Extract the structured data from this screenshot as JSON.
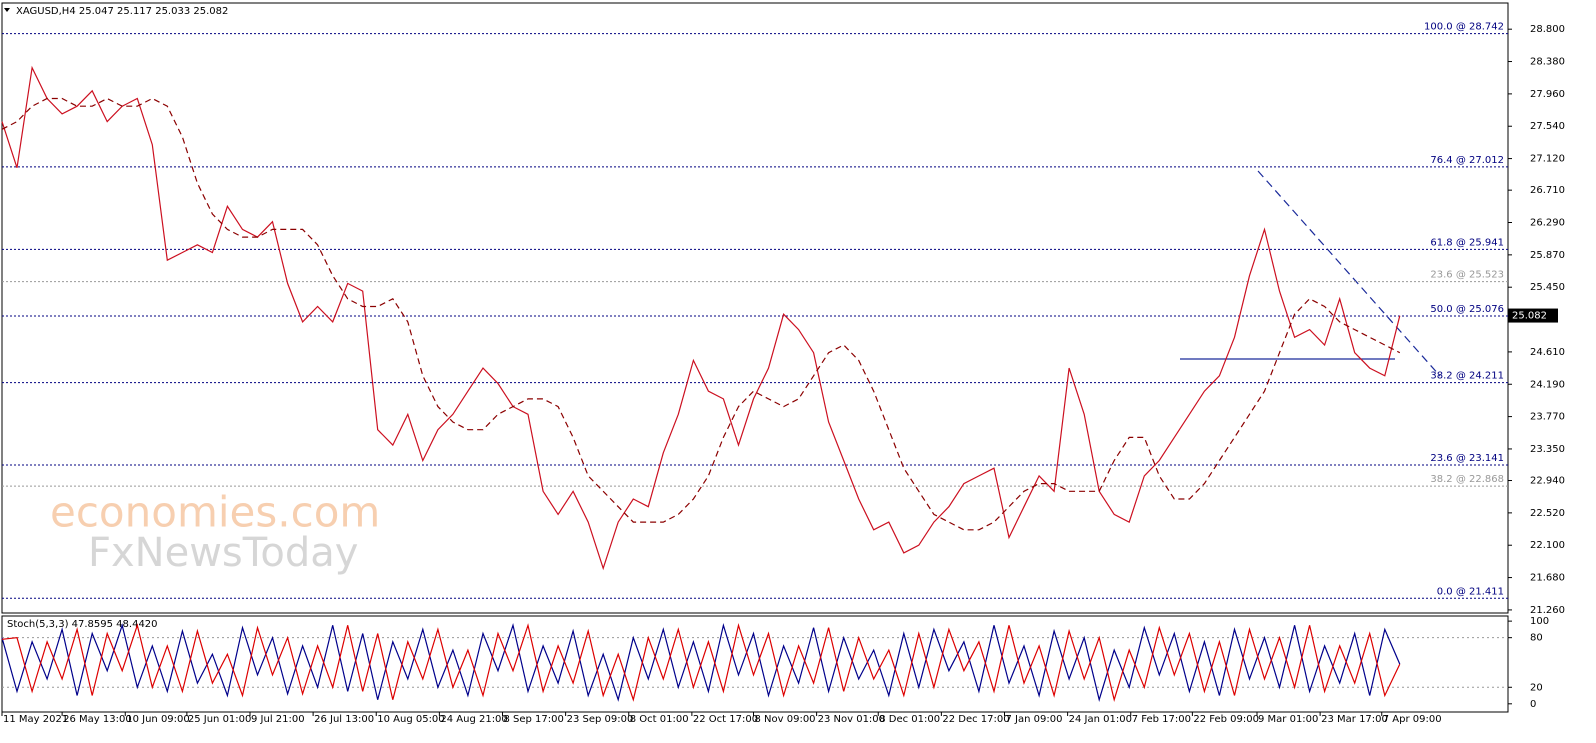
{
  "chart_data": [
    {
      "type": "line",
      "title": "XAGUSD,H4  25.047 25.117 25.033 25.082",
      "xlim": [
        0,
        100.2
      ],
      "xticks": [
        {
          "value": 0,
          "label": "11 May 2021"
        },
        {
          "value": 4,
          "label": "26 May 13:00"
        },
        {
          "value": 8.2,
          "label": "10 Jun 09:00"
        },
        {
          "value": 12.3,
          "label": "25 Jun 01:00"
        },
        {
          "value": 16.5,
          "label": "9 Jul 21:00"
        },
        {
          "value": 20.7,
          "label": "26 Jul 13:00"
        },
        {
          "value": 24.9,
          "label": "10 Aug 05:00"
        },
        {
          "value": 29.1,
          "label": "24 Aug 21:00"
        },
        {
          "value": 33.3,
          "label": "8 Sep 17:00"
        },
        {
          "value": 37.5,
          "label": "23 Sep 09:00"
        },
        {
          "value": 41.7,
          "label": "8 Oct 01:00"
        },
        {
          "value": 45.9,
          "label": "22 Oct 17:00"
        },
        {
          "value": 50,
          "label": "8 Nov 09:00"
        },
        {
          "value": 54.2,
          "label": "23 Nov 01:00"
        },
        {
          "value": 58.3,
          "label": "8 Dec 01:00"
        },
        {
          "value": 62.5,
          "label": "22 Dec 17:00"
        },
        {
          "value": 66.7,
          "label": "7 Jan 09:00"
        },
        {
          "value": 70.9,
          "label": "24 Jan 01:00"
        },
        {
          "value": 75.1,
          "label": "7 Feb 17:00"
        },
        {
          "value": 79.2,
          "label": "22 Feb 09:00"
        },
        {
          "value": 83.5,
          "label": "9 Mar 01:00"
        },
        {
          "value": 87.7,
          "label": "23 Mar 17:00"
        },
        {
          "value": 91.8,
          "label": "7 Apr 09:00"
        }
      ],
      "ylim": [
        21.22,
        29.14
      ],
      "yticks": [
        {
          "value": 28.8,
          "label": "28.800"
        },
        {
          "value": 28.38,
          "label": "28.380"
        },
        {
          "value": 27.96,
          "label": "27.960"
        },
        {
          "value": 27.54,
          "label": "27.540"
        },
        {
          "value": 27.12,
          "label": "27.120"
        },
        {
          "value": 26.71,
          "label": "26.710"
        },
        {
          "value": 26.29,
          "label": "26.290"
        },
        {
          "value": 25.87,
          "label": "25.870"
        },
        {
          "value": 25.45,
          "label": "25.450"
        },
        {
          "value": 24.61,
          "label": "24.610"
        },
        {
          "value": 24.19,
          "label": "24.190"
        },
        {
          "value": 23.77,
          "label": "23.770"
        },
        {
          "value": 23.35,
          "label": "23.350"
        },
        {
          "value": 22.94,
          "label": "22.940"
        },
        {
          "value": 22.52,
          "label": "22.520"
        },
        {
          "value": 22.1,
          "label": "22.100"
        },
        {
          "value": 21.68,
          "label": "21.680"
        },
        {
          "value": 21.26,
          "label": "21.260"
        }
      ],
      "levels": [
        {
          "value": 28.742,
          "label": "100.0 @ 28.742",
          "color": "#000080"
        },
        {
          "value": 27.012,
          "label": "76.4 @ 27.012",
          "color": "#000080"
        },
        {
          "value": 25.941,
          "label": "61.8 @ 25.941",
          "color": "#000080"
        },
        {
          "value": 25.523,
          "label": "23.6 @ 25.523",
          "color": "#999999"
        },
        {
          "value": 25.076,
          "label": "50.0 @ 25.076",
          "color": "#000080"
        },
        {
          "value": 24.211,
          "label": "38.2 @ 24.211",
          "color": "#000080"
        },
        {
          "value": 23.141,
          "label": "23.6 @ 23.141",
          "color": "#000080"
        },
        {
          "value": 22.868,
          "label": "38.2 @ 22.868",
          "color": "#999999"
        },
        {
          "value": 21.411,
          "label": "0.0 @ 21.411",
          "color": "#000080"
        }
      ],
      "last_price": 25.082,
      "series": [
        {
          "color": "#cc1020",
          "style": "solid",
          "values": [
            27.6,
            27.0,
            28.3,
            27.9,
            27.7,
            27.8,
            28.0,
            27.6,
            27.8,
            27.9,
            27.3,
            25.8,
            25.9,
            26.0,
            25.9,
            26.5,
            26.2,
            26.1,
            26.3,
            25.5,
            25.0,
            25.2,
            25.0,
            25.5,
            25.4,
            23.6,
            23.4,
            23.8,
            23.2,
            23.6,
            23.8,
            24.1,
            24.4,
            24.2,
            23.9,
            23.8,
            22.8,
            22.5,
            22.8,
            22.4,
            21.8,
            22.4,
            22.7,
            22.6,
            23.3,
            23.8,
            24.5,
            24.1,
            24.0,
            23.4,
            24.0,
            24.4,
            25.1,
            24.9,
            24.6,
            23.7,
            23.2,
            22.7,
            22.3,
            22.4,
            22.0,
            22.1,
            22.4,
            22.6,
            22.9,
            23.0,
            23.1,
            22.2,
            22.6,
            23.0,
            22.8,
            24.4,
            23.8,
            22.8,
            22.5,
            22.4,
            23.0,
            23.2,
            23.5,
            23.8,
            24.1,
            24.3,
            24.8,
            25.6,
            26.2,
            25.4,
            24.8,
            24.9,
            24.7,
            25.3,
            24.6,
            24.4,
            24.3,
            25.08
          ]
        },
        {
          "color": "#8b0000",
          "style": "dashed",
          "values": [
            27.5,
            27.6,
            27.8,
            27.9,
            27.9,
            27.8,
            27.8,
            27.9,
            27.8,
            27.8,
            27.9,
            27.8,
            27.4,
            26.8,
            26.4,
            26.2,
            26.1,
            26.1,
            26.2,
            26.2,
            26.2,
            26.0,
            25.6,
            25.3,
            25.2,
            25.2,
            25.3,
            25.0,
            24.3,
            23.9,
            23.7,
            23.6,
            23.6,
            23.8,
            23.9,
            24.0,
            24.0,
            23.9,
            23.5,
            23.0,
            22.8,
            22.6,
            22.4,
            22.4,
            22.4,
            22.5,
            22.7,
            23.0,
            23.5,
            23.9,
            24.1,
            24.0,
            23.9,
            24.0,
            24.3,
            24.6,
            24.7,
            24.5,
            24.1,
            23.6,
            23.1,
            22.8,
            22.5,
            22.4,
            22.3,
            22.3,
            22.4,
            22.6,
            22.8,
            22.9,
            22.9,
            22.8,
            22.8,
            22.8,
            23.2,
            23.5,
            23.5,
            23.0,
            22.7,
            22.7,
            22.9,
            23.2,
            23.5,
            23.8,
            24.1,
            24.6,
            25.1,
            25.3,
            25.2,
            25.0,
            24.9,
            24.8,
            24.7,
            24.6
          ]
        }
      ]
    },
    {
      "type": "line",
      "title": "Stoch(5,3,3) 47.8595 48.4420",
      "ylim": [
        -9.9,
        106.2
      ],
      "yticks": [
        100,
        80,
        20,
        0
      ],
      "hlines": [
        80,
        20
      ],
      "series": [
        {
          "color": "#00008b",
          "style": "solid",
          "values": [
            80,
            15,
            75,
            30,
            90,
            10,
            85,
            40,
            95,
            20,
            70,
            15,
            88,
            25,
            60,
            10,
            92,
            35,
            80,
            12,
            70,
            20,
            95,
            15,
            85,
            5,
            75,
            30,
            90,
            20,
            65,
            10,
            85,
            40,
            95,
            15,
            70,
            25,
            88,
            10,
            60,
            5,
            80,
            30,
            90,
            20,
            75,
            15,
            95,
            35,
            85,
            10,
            70,
            25,
            92,
            15,
            80,
            30,
            65,
            10,
            85,
            20,
            90,
            40,
            75,
            15,
            95,
            25,
            70,
            10,
            88,
            30,
            80,
            5,
            65,
            20,
            92,
            35,
            85,
            15,
            75,
            10,
            90,
            30,
            80,
            20,
            95,
            15,
            70,
            25,
            85,
            10,
            90,
            48
          ]
        },
        {
          "color": "#dd0000",
          "style": "solid",
          "values": [
            78,
            80,
            15,
            75,
            30,
            90,
            10,
            85,
            40,
            95,
            20,
            70,
            15,
            88,
            25,
            60,
            10,
            92,
            35,
            80,
            12,
            70,
            20,
            95,
            15,
            85,
            5,
            75,
            30,
            90,
            20,
            65,
            10,
            85,
            40,
            95,
            15,
            70,
            25,
            88,
            10,
            60,
            5,
            80,
            30,
            90,
            20,
            75,
            15,
            95,
            35,
            85,
            10,
            70,
            25,
            92,
            15,
            80,
            30,
            65,
            10,
            85,
            20,
            90,
            40,
            75,
            15,
            95,
            25,
            70,
            10,
            88,
            30,
            80,
            5,
            65,
            20,
            92,
            35,
            85,
            15,
            75,
            10,
            90,
            30,
            80,
            20,
            95,
            15,
            70,
            25,
            85,
            10,
            48
          ]
        }
      ]
    }
  ],
  "watermark": [
    "economies.com",
    "FxNewsToday"
  ]
}
